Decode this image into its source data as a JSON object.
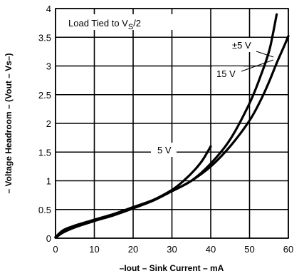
{
  "chart_data": {
    "type": "line",
    "title": "Load Tied to VS/2",
    "title_main": "Load Tied to V",
    "title_sub": "S",
    "title_tail": "/2",
    "xlabel": "–Iout – Sink Current – mA",
    "ylabel": "– Voltage Headroom – (Vout – Vs–)",
    "xlim": [
      0,
      60
    ],
    "ylim": [
      0,
      4
    ],
    "x_ticks": [
      0,
      10,
      20,
      30,
      40,
      50,
      60
    ],
    "y_ticks": [
      0,
      0.5,
      1,
      1.5,
      2,
      2.5,
      3,
      3.5,
      4
    ],
    "x_tick_labels": [
      "0",
      "10",
      "20",
      "30",
      "40",
      "50",
      "60"
    ],
    "y_tick_labels": [
      "0",
      "0.5",
      "1",
      "1.5",
      "2",
      "2.5",
      "3",
      "3.5",
      "4"
    ],
    "grid": true,
    "series": [
      {
        "name": "5 V",
        "x": [
          0,
          2,
          5,
          10,
          15,
          20,
          25,
          30,
          33,
          36,
          38,
          40
        ],
        "y": [
          0.02,
          0.14,
          0.22,
          0.32,
          0.42,
          0.54,
          0.66,
          0.84,
          1.0,
          1.2,
          1.37,
          1.6
        ]
      },
      {
        "name": "±5 V",
        "x": [
          0,
          2,
          5,
          10,
          15,
          20,
          25,
          30,
          35,
          40,
          45,
          50,
          53,
          55,
          56,
          57
        ],
        "y": [
          0.02,
          0.12,
          0.21,
          0.32,
          0.42,
          0.54,
          0.66,
          0.82,
          1.0,
          1.3,
          1.72,
          2.35,
          2.85,
          3.25,
          3.55,
          3.9
        ]
      },
      {
        "name": "15 V",
        "x": [
          0,
          2,
          5,
          10,
          15,
          20,
          25,
          30,
          35,
          40,
          45,
          50,
          53,
          55,
          57,
          59,
          60
        ],
        "y": [
          0.01,
          0.1,
          0.19,
          0.3,
          0.4,
          0.52,
          0.65,
          0.82,
          1.0,
          1.25,
          1.6,
          2.05,
          2.42,
          2.72,
          3.05,
          3.36,
          3.52
        ]
      }
    ],
    "annotations": {
      "five_v": "5 V",
      "pm_five_v": "±5 V",
      "fifteen_v": "15 V"
    }
  }
}
